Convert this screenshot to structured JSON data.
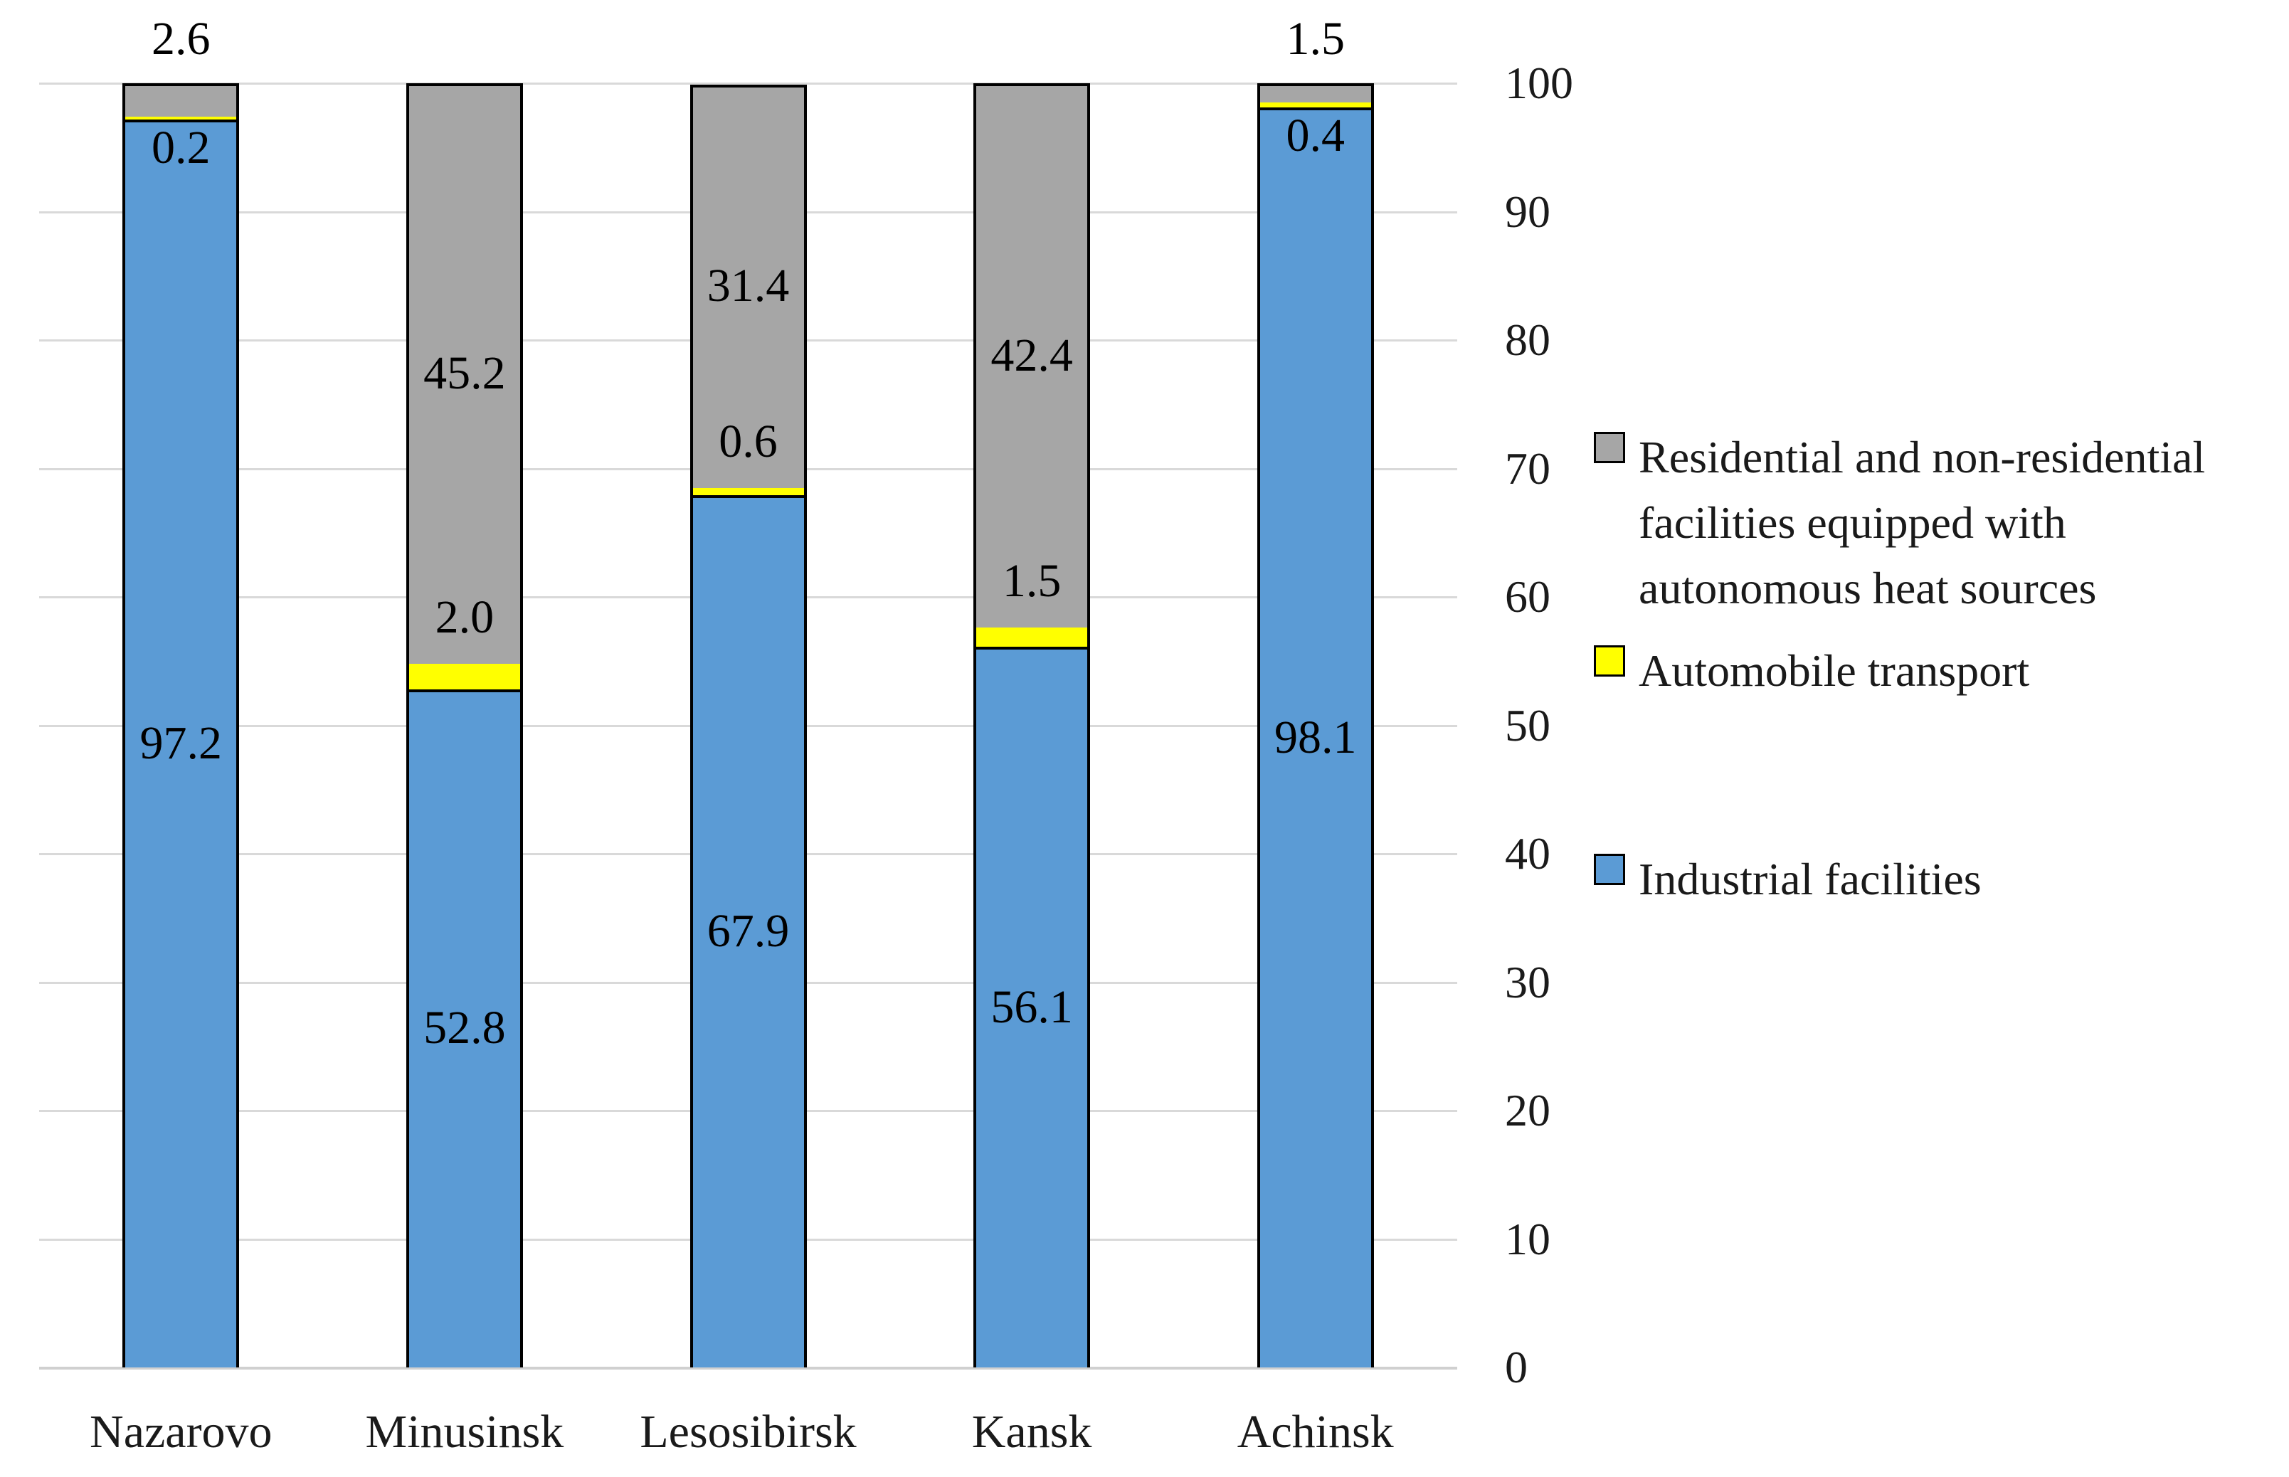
{
  "chart_data": {
    "type": "stacked-bar",
    "title": "",
    "xlabel": "",
    "ylabel": "",
    "categories": [
      "Nazarovo",
      "Minusinsk",
      "Lesosibirsk",
      "Kansk",
      "Achinsk"
    ],
    "series": [
      {
        "name": "Industrial facilities",
        "color": "#5B9BD5",
        "values": [
          97.2,
          52.8,
          67.9,
          56.1,
          98.1
        ],
        "labels": [
          "97.2",
          "52.8",
          "67.9",
          "56.1",
          "98.1"
        ],
        "label_pos": [
          "center",
          "center",
          "center",
          "center",
          "center"
        ]
      },
      {
        "name": "Automobile transport",
        "color": "#FFFF00",
        "values": [
          0.2,
          2.0,
          0.6,
          1.5,
          0.4
        ],
        "labels": [
          "0.2",
          "2.0",
          "0.6",
          "1.5",
          "0.4"
        ],
        "label_pos": [
          "below",
          "above",
          "above",
          "above",
          "below"
        ]
      },
      {
        "name": "Residential and non-residential facilities equipped with autonomous heat sources",
        "color": "#A6A6A6",
        "values": [
          2.6,
          45.2,
          31.4,
          42.4,
          1.5
        ],
        "labels": [
          "2.6",
          "45.2",
          "31.4",
          "42.4",
          "1.5"
        ],
        "label_pos": [
          "outside-top",
          "center",
          "center",
          "center",
          "outside-top"
        ]
      }
    ],
    "ylim": [
      0,
      100
    ],
    "yticks": [
      "0",
      "10",
      "20",
      "30",
      "40",
      "50",
      "60",
      "70",
      "80",
      "90",
      "100"
    ],
    "grid": true,
    "legend_position": "right",
    "legend_items": [
      {
        "series": "Residential and non-residential facilities equipped with autonomous heat sources",
        "color": "#A6A6A6",
        "lines": [
          "Residential and non-residential",
          "facilities equipped with",
          "autonomous heat sources"
        ]
      },
      {
        "series": "Automobile transport",
        "color": "#FFFF00",
        "lines": [
          "Automobile transport"
        ]
      },
      {
        "series": "Industrial facilities",
        "color": "#5B9BD5",
        "lines": [
          "Industrial facilities"
        ]
      }
    ]
  },
  "style_colors": {
    "bar_border": "#000000",
    "gridline": "#D9D9D9",
    "axis_line": "#D0D0D0",
    "label_text": "#000000"
  }
}
